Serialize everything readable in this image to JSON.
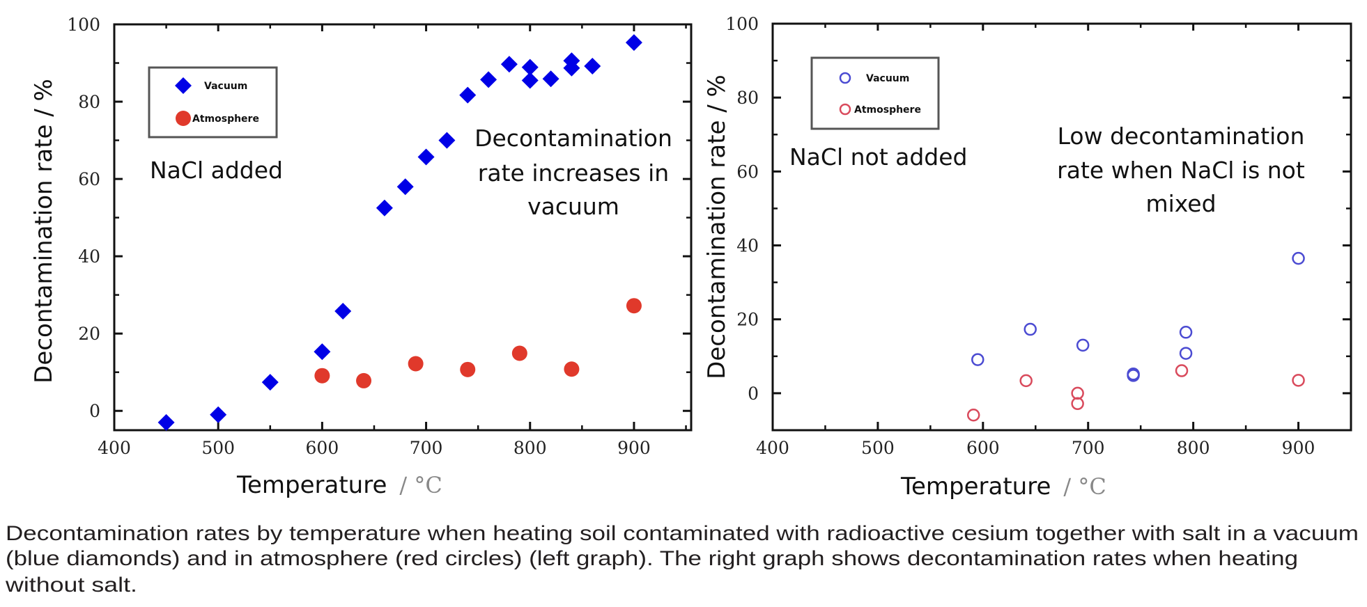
{
  "colors": {
    "vacuum_filled": "#0000e6",
    "atmosphere_filled": "#e0392b",
    "vacuum_open": "#4b4bd2",
    "atmosphere_open": "#d94a5c"
  },
  "chart_data": [
    {
      "type": "scatter",
      "panel": "left",
      "title": "",
      "xlabel": "Temperature",
      "xunit": "/ °C",
      "ylabel": "Decontamination rate / %",
      "xlim": [
        400,
        955
      ],
      "ylim": [
        -5,
        100
      ],
      "xticks": [
        400,
        500,
        600,
        700,
        800,
        900
      ],
      "xtick_labels": [
        "400",
        "500",
        "600",
        "700",
        "800",
        "900"
      ],
      "yticks": [
        0,
        20,
        40,
        60,
        80,
        100
      ],
      "ytick_labels": [
        "0",
        "20",
        "40",
        "60",
        "80",
        "100"
      ],
      "grid": false,
      "legend_position": "top-left",
      "annotations": [
        {
          "id": "condition",
          "lines": [
            "NaCl added"
          ]
        },
        {
          "id": "finding",
          "lines": [
            "Decontamination",
            "rate increases in",
            "vacuum"
          ]
        }
      ],
      "series": [
        {
          "name": "Vacuum",
          "marker": "filled-diamond",
          "x": [
            450,
            500,
            550,
            600,
            620,
            660,
            680,
            700,
            720,
            740,
            760,
            780,
            800,
            800,
            820,
            840,
            840,
            860,
            900
          ],
          "y": [
            -3,
            -1,
            7.4,
            15.3,
            25.8,
            52.5,
            58,
            65.7,
            70,
            81.7,
            85.7,
            89.7,
            88.9,
            85.5,
            85.9,
            90.6,
            88.7,
            89.2,
            95.3
          ]
        },
        {
          "name": "Atmosphere",
          "marker": "filled-circle",
          "x": [
            600,
            640,
            690,
            740,
            790,
            840,
            900
          ],
          "y": [
            9.1,
            7.8,
            12.2,
            10.7,
            14.9,
            10.8,
            27.2
          ]
        }
      ]
    },
    {
      "type": "scatter",
      "panel": "right",
      "title": "",
      "xlabel": "Temperature",
      "xunit": "/ °C",
      "ylabel": "Decontamination rate / %",
      "xlim": [
        400,
        950
      ],
      "ylim": [
        -10,
        100
      ],
      "xticks": [
        400,
        500,
        600,
        700,
        800,
        900
      ],
      "xtick_labels": [
        "400",
        "500",
        "600",
        "700",
        "800",
        "900"
      ],
      "yticks": [
        0,
        20,
        40,
        60,
        80,
        100
      ],
      "ytick_labels": [
        "0",
        "20",
        "40",
        "60",
        "80",
        "100"
      ],
      "grid": false,
      "legend_position": "top-left",
      "annotations": [
        {
          "id": "condition",
          "lines": [
            "NaCl not added"
          ]
        },
        {
          "id": "finding",
          "lines": [
            "Low decontamination",
            "rate when NaCl is not",
            "mixed"
          ]
        }
      ],
      "series": [
        {
          "name": "Vacuum",
          "marker": "open-circle",
          "x": [
            595,
            645,
            695,
            743,
            743,
            793,
            793,
            900
          ],
          "y": [
            9.1,
            17.3,
            13,
            5.2,
            4.8,
            16.5,
            10.8,
            36.5
          ]
        },
        {
          "name": "Atmosphere",
          "marker": "open-circle",
          "x": [
            591,
            641,
            690,
            690,
            789,
            900
          ],
          "y": [
            -5.9,
            3.4,
            0,
            -2.8,
            6.1,
            3.5
          ]
        }
      ]
    }
  ],
  "caption": {
    "lines": [
      "Decontamination rates by temperature when heating soil contaminated with radioactive cesium together with salt in a vacuum",
      "(blue diamonds) and in atmosphere (red circles) (left graph). The right graph shows decontamination rates when heating",
      "without salt."
    ]
  }
}
